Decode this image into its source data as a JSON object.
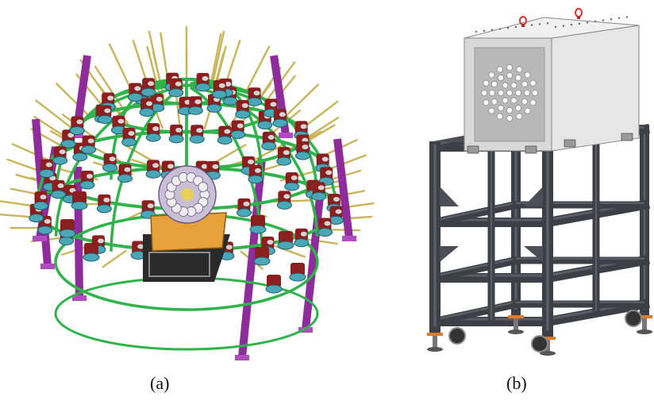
{
  "panels": [
    {
      "id": "a",
      "caption": "(a)",
      "subject": "dome-array-assembly",
      "colors": {
        "dome_ring": "#2fb34a",
        "leg": "#8e2c9c",
        "detector_body": "#8b1e1e",
        "detector_cap": "#4aa7b8",
        "rod": "#c9b45a",
        "base_plate": "#e6a13a",
        "cart": "#2b2b2b"
      }
    },
    {
      "id": "b",
      "caption": "(b)",
      "subject": "shielding-box-on-frame",
      "colors": {
        "box": "#d9d9d9",
        "box_shadow": "#b8b8b8",
        "lift_ring": "#d9342b",
        "frame": "#3c3f46",
        "frame_light": "#5a5e66",
        "foot_pad": "#e07a28"
      }
    }
  ]
}
